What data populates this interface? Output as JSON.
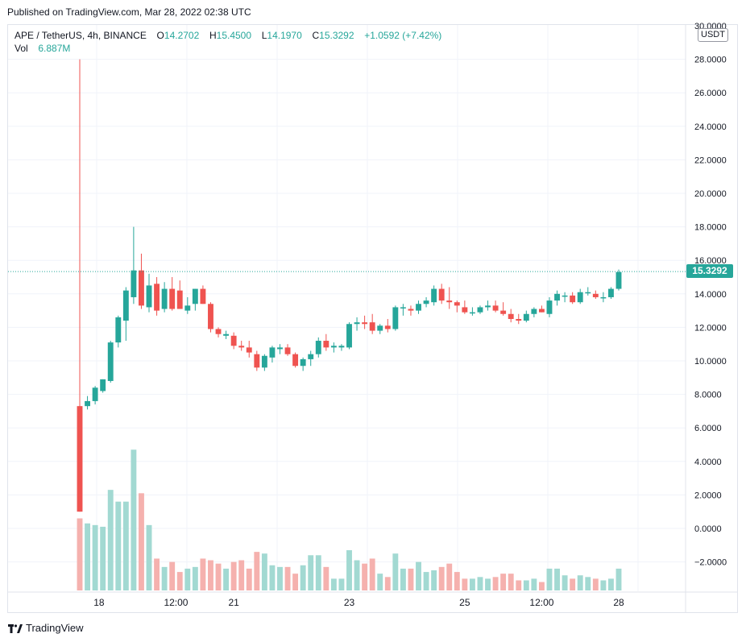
{
  "header": {
    "published": "Published on TradingView.com, Mar 28, 2022 02:38 UTC"
  },
  "legend": {
    "symbol": "APE / TetherUS, 4h, BINANCE",
    "open_label": "O",
    "open": "14.2702",
    "high_label": "H",
    "high": "15.4500",
    "low_label": "L",
    "low": "14.1970",
    "close_label": "C",
    "close": "15.3292",
    "change": "+1.0592 (+7.42%)",
    "vol_label": "Vol",
    "vol": "6.887M"
  },
  "price_tag": "15.3292",
  "unit_label": "USDT",
  "footer": {
    "brand": "TradingView"
  },
  "colors": {
    "up": "#26a69a",
    "down": "#ef5350",
    "vol_up": "#a2d9d2",
    "vol_down": "#f5b1ae",
    "grid": "#f0f3fa"
  },
  "chart_data": {
    "type": "candlestick",
    "title": "APE / TetherUS, 4h, BINANCE",
    "ylabel": "USDT",
    "ylim": [
      -4,
      30
    ],
    "y_ticks": [
      "28.0000",
      "26.0000",
      "24.0000",
      "22.0000",
      "20.0000",
      "18.0000",
      "16.0000",
      "14.0000",
      "12.0000",
      "10.0000",
      "8.0000",
      "6.0000",
      "4.0000",
      "2.0000",
      "0.0000",
      "−2.0000"
    ],
    "y_top_partial_tick": "30.0000",
    "x_ticks": [
      {
        "label": "18",
        "index": 1
      },
      {
        "label": "12:00",
        "index": 5
      },
      {
        "label": "21",
        "index": 8
      },
      {
        "label": "23",
        "index": 14
      },
      {
        "label": "25",
        "index": 20
      },
      {
        "label": "12:00",
        "index": 24
      },
      {
        "label": "28",
        "index": 28
      }
    ],
    "candles": [
      [
        7.3,
        28.0,
        1.0,
        1.0,
        0.6
      ],
      [
        7.3,
        7.9,
        7.1,
        7.6,
        0.3
      ],
      [
        7.6,
        8.5,
        7.4,
        8.4,
        0.2
      ],
      [
        8.2,
        8.9,
        8.1,
        8.9,
        0.1
      ],
      [
        8.8,
        11.2,
        8.7,
        11.1,
        2.3
      ],
      [
        11.1,
        12.7,
        10.8,
        12.6,
        1.6
      ],
      [
        12.4,
        14.4,
        11.2,
        14.2,
        1.6
      ],
      [
        13.8,
        18.0,
        13.4,
        15.4,
        4.7
      ],
      [
        15.4,
        16.4,
        13.1,
        13.3,
        2.1
      ],
      [
        13.2,
        15.2,
        12.9,
        14.5,
        0.2
      ],
      [
        14.6,
        15.0,
        12.7,
        13.0,
        -1.8
      ],
      [
        13.1,
        14.7,
        12.9,
        14.3,
        -2.3
      ],
      [
        14.3,
        15.0,
        13.0,
        13.1,
        -2.0
      ],
      [
        14.2,
        14.8,
        13.2,
        13.1,
        -2.6
      ],
      [
        13.0,
        13.8,
        12.8,
        13.3,
        -2.4
      ],
      [
        13.4,
        14.3,
        13.0,
        14.3,
        -2.3
      ],
      [
        14.3,
        14.5,
        13.4,
        13.4,
        -1.8
      ],
      [
        13.4,
        13.5,
        11.7,
        11.9,
        -1.9
      ],
      [
        11.9,
        12.0,
        11.4,
        11.6,
        -2.1
      ],
      [
        11.5,
        11.8,
        11.3,
        11.6,
        -2.4
      ],
      [
        11.5,
        11.7,
        10.7,
        10.9,
        -2.0
      ],
      [
        10.9,
        11.2,
        10.6,
        10.8,
        -1.9
      ],
      [
        10.8,
        11.2,
        10.2,
        10.5,
        -2.4
      ],
      [
        10.4,
        10.6,
        9.4,
        9.6,
        -1.4
      ],
      [
        9.6,
        10.4,
        9.4,
        10.3,
        -1.5
      ],
      [
        10.2,
        10.9,
        9.9,
        10.8,
        -2.2
      ],
      [
        10.7,
        11.0,
        10.4,
        10.8,
        -2.3
      ],
      [
        10.8,
        11.0,
        10.3,
        10.4,
        -2.3
      ],
      [
        10.4,
        10.5,
        9.6,
        9.7,
        -2.7
      ],
      [
        9.7,
        10.2,
        9.4,
        10.1,
        -2.2
      ],
      [
        10.1,
        10.6,
        9.7,
        10.4,
        -1.6
      ],
      [
        10.4,
        11.4,
        10.2,
        11.2,
        -1.6
      ],
      [
        11.2,
        11.6,
        10.6,
        10.8,
        -2.3
      ],
      [
        10.8,
        11.1,
        10.5,
        10.9,
        -3.0
      ],
      [
        10.8,
        11.0,
        10.6,
        10.9,
        -3.0
      ],
      [
        10.8,
        12.3,
        10.7,
        12.2,
        -1.3
      ],
      [
        12.2,
        12.6,
        11.8,
        12.3,
        -1.9
      ],
      [
        12.3,
        12.7,
        11.9,
        12.2,
        -2.1
      ],
      [
        12.3,
        12.8,
        11.6,
        11.8,
        -1.8
      ],
      [
        11.8,
        12.2,
        11.6,
        12.1,
        -2.7
      ],
      [
        12.1,
        12.5,
        11.7,
        11.9,
        -2.9
      ],
      [
        11.9,
        13.3,
        11.8,
        13.2,
        -1.5
      ],
      [
        13.2,
        13.4,
        12.7,
        13.2,
        -2.4
      ],
      [
        13.1,
        13.3,
        12.7,
        13.0,
        -2.4
      ],
      [
        13.0,
        13.6,
        12.8,
        13.4,
        -2.0
      ],
      [
        13.4,
        13.8,
        13.2,
        13.6,
        -2.6
      ],
      [
        13.5,
        14.5,
        13.3,
        14.3,
        -2.5
      ],
      [
        14.3,
        14.6,
        13.4,
        13.6,
        -2.3
      ],
      [
        13.6,
        14.4,
        13.1,
        13.5,
        -2.1
      ],
      [
        13.5,
        13.6,
        12.9,
        13.3,
        -2.6
      ],
      [
        13.2,
        13.6,
        12.8,
        12.9,
        -3.0
      ],
      [
        12.9,
        13.2,
        12.7,
        12.9,
        -3.0
      ],
      [
        12.9,
        13.3,
        12.8,
        13.2,
        -2.9
      ],
      [
        13.2,
        13.6,
        13.0,
        13.3,
        -3.0
      ],
      [
        13.3,
        13.6,
        12.9,
        13.0,
        -2.9
      ],
      [
        13.0,
        13.5,
        12.7,
        12.8,
        -2.7
      ],
      [
        12.8,
        13.1,
        12.3,
        12.5,
        -2.7
      ],
      [
        12.5,
        12.8,
        12.2,
        12.4,
        -3.1
      ],
      [
        12.4,
        13.0,
        12.3,
        12.8,
        -3.1
      ],
      [
        12.8,
        13.2,
        12.6,
        13.1,
        -3.0
      ],
      [
        13.1,
        13.3,
        12.9,
        12.9,
        -3.2
      ],
      [
        12.8,
        13.8,
        12.6,
        13.6,
        -2.4
      ],
      [
        13.6,
        14.2,
        13.3,
        14.0,
        -2.4
      ],
      [
        13.9,
        14.1,
        13.5,
        13.9,
        -2.8
      ],
      [
        13.9,
        14.1,
        13.4,
        13.5,
        -3.0
      ],
      [
        13.5,
        14.3,
        13.4,
        14.1,
        -2.8
      ],
      [
        14.1,
        14.4,
        13.9,
        14.1,
        -2.9
      ],
      [
        14.0,
        14.2,
        13.7,
        13.8,
        -3.0
      ],
      [
        13.8,
        14.1,
        13.5,
        13.8,
        -3.1
      ],
      [
        13.8,
        14.4,
        13.7,
        14.3,
        -3.0
      ],
      [
        14.3,
        15.45,
        14.2,
        15.3,
        -2.4
      ]
    ],
    "candle_format": [
      "open",
      "high",
      "low",
      "close",
      "volume_bar_top_on_price_axis"
    ],
    "last_price": 15.3292
  }
}
